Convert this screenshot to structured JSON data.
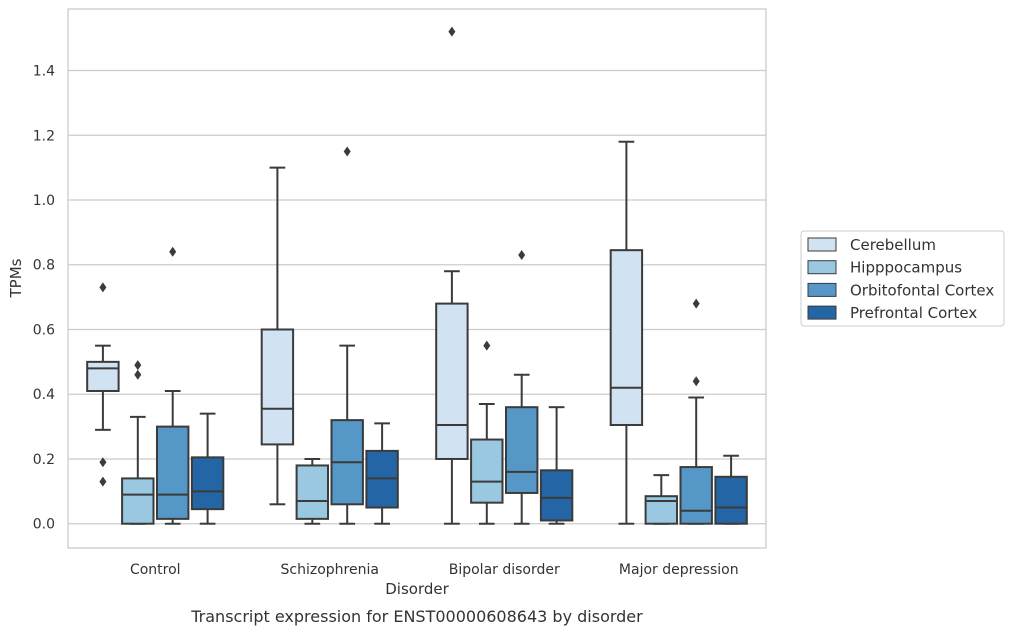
{
  "chart_data": {
    "type": "box",
    "caption": "Transcript expression for ENST00000608643 by disorder",
    "xlabel": "Disorder",
    "ylabel": "TPMs",
    "ylim": [
      -0.075,
      1.59
    ],
    "yticks": [
      "0.0",
      "0.2",
      "0.4",
      "0.6",
      "0.8",
      "1.0",
      "1.2",
      "1.4"
    ],
    "grid": true,
    "legend_position": "right",
    "categories": [
      "Control",
      "Schizophrenia",
      "Bipolar disorder",
      "Major depression"
    ],
    "series": [
      {
        "name": "Cerebellum",
        "color": "#d1e2f2",
        "boxes": [
          {
            "whislo": 0.29,
            "q1": 0.41,
            "med": 0.48,
            "q3": 0.5,
            "whishi": 0.55,
            "fliers": [
              0.73,
              0.19,
              0.13
            ]
          },
          {
            "whislo": 0.06,
            "q1": 0.245,
            "med": 0.355,
            "q3": 0.6,
            "whishi": 1.1,
            "fliers": []
          },
          {
            "whislo": 0.0,
            "q1": 0.2,
            "med": 0.305,
            "q3": 0.68,
            "whishi": 0.78,
            "fliers": [
              1.52
            ]
          },
          {
            "whislo": 0.0,
            "q1": 0.305,
            "med": 0.42,
            "q3": 0.845,
            "whishi": 1.18,
            "fliers": []
          }
        ]
      },
      {
        "name": "Hipppocampus",
        "color": "#9ac8e0",
        "boxes": [
          {
            "whislo": 0.0,
            "q1": 0.0,
            "med": 0.09,
            "q3": 0.14,
            "whishi": 0.33,
            "fliers": [
              0.49,
              0.46
            ]
          },
          {
            "whislo": 0.0,
            "q1": 0.015,
            "med": 0.07,
            "q3": 0.18,
            "whishi": 0.2,
            "fliers": []
          },
          {
            "whislo": 0.0,
            "q1": 0.065,
            "med": 0.13,
            "q3": 0.26,
            "whishi": 0.37,
            "fliers": [
              0.55
            ]
          },
          {
            "whislo": 0.0,
            "q1": 0.0,
            "med": 0.07,
            "q3": 0.085,
            "whishi": 0.15,
            "fliers": []
          }
        ]
      },
      {
        "name": "Orbitofontal Cortex",
        "color": "#5597c7",
        "boxes": [
          {
            "whislo": 0.0,
            "q1": 0.015,
            "med": 0.09,
            "q3": 0.3,
            "whishi": 0.41,
            "fliers": [
              0.84
            ]
          },
          {
            "whislo": 0.0,
            "q1": 0.06,
            "med": 0.19,
            "q3": 0.32,
            "whishi": 0.55,
            "fliers": [
              1.15
            ]
          },
          {
            "whislo": 0.0,
            "q1": 0.095,
            "med": 0.16,
            "q3": 0.36,
            "whishi": 0.46,
            "fliers": [
              0.83
            ]
          },
          {
            "whislo": 0.0,
            "q1": 0.0,
            "med": 0.04,
            "q3": 0.175,
            "whishi": 0.39,
            "fliers": [
              0.68,
              0.44
            ]
          }
        ]
      },
      {
        "name": "Prefrontal Cortex",
        "color": "#2465a6",
        "boxes": [
          {
            "whislo": 0.0,
            "q1": 0.045,
            "med": 0.1,
            "q3": 0.205,
            "whishi": 0.34,
            "fliers": []
          },
          {
            "whislo": 0.0,
            "q1": 0.05,
            "med": 0.14,
            "q3": 0.225,
            "whishi": 0.31,
            "fliers": []
          },
          {
            "whislo": 0.0,
            "q1": 0.01,
            "med": 0.08,
            "q3": 0.165,
            "whishi": 0.36,
            "fliers": []
          },
          {
            "whislo": 0.0,
            "q1": 0.0,
            "med": 0.05,
            "q3": 0.145,
            "whishi": 0.21,
            "fliers": []
          }
        ]
      }
    ]
  }
}
